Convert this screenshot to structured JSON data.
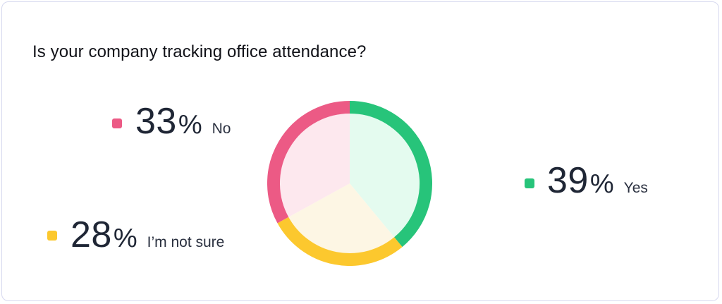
{
  "title": "Is your company tracking office attendance?",
  "chart_data": {
    "type": "pie",
    "title": "Is your company tracking office attendance?",
    "slices": [
      {
        "label": "Yes",
        "value": 39,
        "color": "#27c47a",
        "fill": "#e4fbef"
      },
      {
        "label": "I'm not sure",
        "value": 28,
        "color": "#fcc82e",
        "fill": "#fdf6e4"
      },
      {
        "label": "No",
        "value": 33,
        "color": "#ec5a85",
        "fill": "#fde8ee"
      }
    ],
    "unit": "%"
  },
  "legend": {
    "no": {
      "number": "33",
      "unit": "%",
      "label": "No",
      "color": "#ec5a85"
    },
    "not_sure": {
      "number": "28",
      "unit": "%",
      "label": "I’m not sure",
      "color": "#fcc82e"
    },
    "yes": {
      "number": "39",
      "unit": "%",
      "label": "Yes",
      "color": "#27c47a"
    }
  }
}
